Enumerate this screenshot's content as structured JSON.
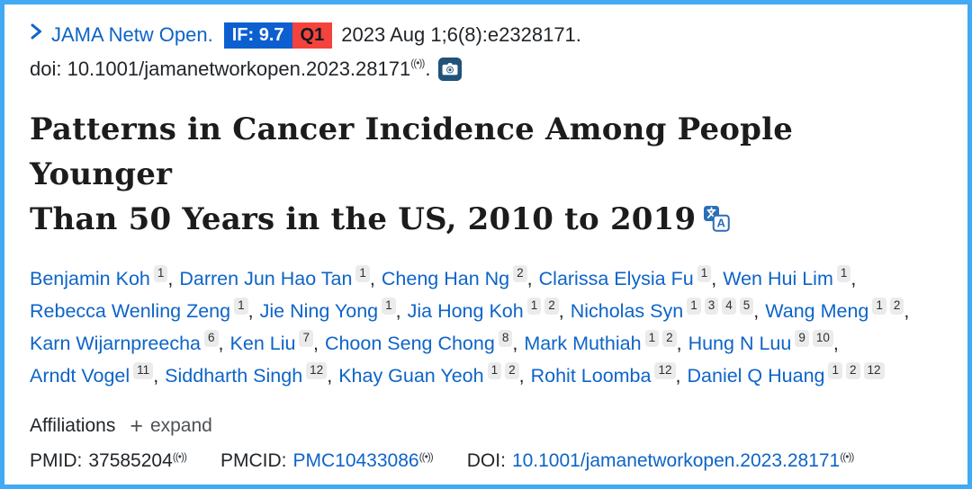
{
  "colors": {
    "frame_border": "#41aaf2",
    "link_blue": "#0d64c8",
    "impact_factor_badge_bg": "#0d5fd0",
    "quartile_badge_bg": "#f4433c",
    "text_dark": "#212529",
    "muted_gray": "#4d5156",
    "affiliation_badge_bg": "#ebebec",
    "camera_icon_bg": "#20527a",
    "translate_icon_blue": "#2a6fb8"
  },
  "journal_bar": {
    "journal_name": "JAMA Netw Open.",
    "impact_factor": "IF: 9.7",
    "quartile": "Q1",
    "citation": "2023 Aug 1;6(8):e2328171.",
    "doi_line": "doi: 10.1001/jamanetworkopen.2023.28171",
    "doi_period": "."
  },
  "icons": {
    "cite_glyph": "((•))"
  },
  "article": {
    "title_line1": "Patterns in Cancer Incidence Among People Younger",
    "title_line2": "Than 50 Years in the US, 2010 to 2019"
  },
  "authors": [
    {
      "name": "Benjamin Koh",
      "affs": [
        "1"
      ]
    },
    {
      "name": "Darren Jun Hao Tan",
      "affs": [
        "1"
      ]
    },
    {
      "name": "Cheng Han Ng",
      "affs": [
        "2"
      ]
    },
    {
      "name": "Clarissa Elysia Fu",
      "affs": [
        "1"
      ]
    },
    {
      "name": "Wen Hui Lim",
      "affs": [
        "1"
      ]
    },
    {
      "name": "Rebecca Wenling Zeng",
      "affs": [
        "1"
      ]
    },
    {
      "name": "Jie Ning Yong",
      "affs": [
        "1"
      ]
    },
    {
      "name": "Jia Hong Koh",
      "affs": [
        "1",
        "2"
      ]
    },
    {
      "name": "Nicholas Syn",
      "affs": [
        "1",
        "3",
        "4",
        "5"
      ]
    },
    {
      "name": "Wang Meng",
      "affs": [
        "1",
        "2"
      ]
    },
    {
      "name": "Karn Wijarnpreecha",
      "affs": [
        "6"
      ]
    },
    {
      "name": "Ken Liu",
      "affs": [
        "7"
      ]
    },
    {
      "name": "Choon Seng Chong",
      "affs": [
        "8"
      ]
    },
    {
      "name": "Mark Muthiah",
      "affs": [
        "1",
        "2"
      ]
    },
    {
      "name": "Hung N Luu",
      "affs": [
        "9",
        "10"
      ]
    },
    {
      "name": "Arndt Vogel",
      "affs": [
        "11"
      ]
    },
    {
      "name": "Siddharth Singh",
      "affs": [
        "12"
      ]
    },
    {
      "name": "Khay Guan Yeoh",
      "affs": [
        "1",
        "2"
      ]
    },
    {
      "name": "Rohit Loomba",
      "affs": [
        "12"
      ]
    },
    {
      "name": "Daniel Q Huang",
      "affs": [
        "1",
        "2",
        "12"
      ]
    }
  ],
  "affiliations": {
    "label": "Affiliations",
    "plus": "+",
    "expand": "expand"
  },
  "identifiers": {
    "pmid_label": "PMID:",
    "pmid_value": "37585204",
    "pmcid_label": "PMCID:",
    "pmcid_value": "PMC10433086",
    "doi_label": "DOI:",
    "doi_value": "10.1001/jamanetworkopen.2023.28171"
  }
}
